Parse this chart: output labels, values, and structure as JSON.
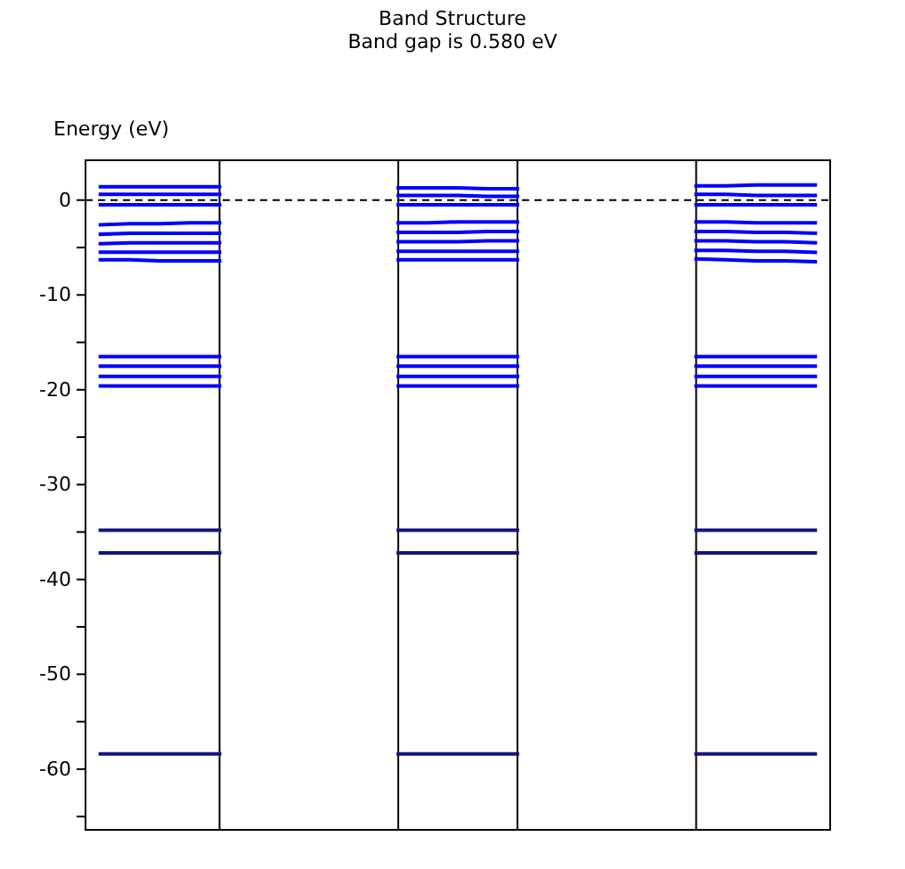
{
  "chart_data": {
    "type": "line",
    "title": "Band Structure",
    "subtitle": "Band gap is 0.580 eV",
    "ylabel": "Energy (eV)",
    "categories": [
      null,
      null,
      null,
      null,
      null,
      null,
      null,
      null,
      null,
      null,
      null,
      null,
      null,
      null,
      null,
      null,
      null,
      null,
      null,
      null,
      null,
      null,
      null,
      null,
      null
    ],
    "ylim": [
      -66.4,
      4.2
    ],
    "yticks": [
      {
        "value": 0,
        "label": "0"
      },
      {
        "value": -5,
        "label": null
      },
      {
        "value": -10,
        "label": "-10"
      },
      {
        "value": -15,
        "label": null
      },
      {
        "value": -20,
        "label": "-20"
      },
      {
        "value": -25,
        "label": null
      },
      {
        "value": -30,
        "label": "-30"
      },
      {
        "value": -35,
        "label": null
      },
      {
        "value": -40,
        "label": "-40"
      },
      {
        "value": -45,
        "label": null
      },
      {
        "value": -50,
        "label": "-50"
      },
      {
        "value": -55,
        "label": null
      },
      {
        "value": -60,
        "label": "-60"
      },
      {
        "value": -65,
        "label": null
      }
    ],
    "tick_labels": "y",
    "grid": "x",
    "marker": "none",
    "line_style": "solid",
    "ref_lines": [
      {
        "axis": "y",
        "value": 0,
        "color": "#000000",
        "line_style": "dashed"
      }
    ],
    "series": [
      {
        "color": "#0000ff",
        "values": [
          1.4,
          1.4,
          1.4,
          1.4,
          1.4,
          null,
          null,
          null,
          null,
          null,
          1.3,
          1.3,
          1.3,
          1.2,
          1.2,
          null,
          null,
          null,
          null,
          null,
          1.5,
          1.5,
          1.6,
          1.6,
          1.6
        ]
      },
      {
        "color": "#0000ff",
        "values": [
          0.6,
          0.6,
          0.6,
          0.6,
          0.6,
          null,
          null,
          null,
          null,
          null,
          0.5,
          0.5,
          0.5,
          0.4,
          0.4,
          null,
          null,
          null,
          null,
          null,
          0.6,
          0.6,
          0.5,
          0.5,
          0.5
        ]
      },
      {
        "color": "#0000ff",
        "values": [
          -0.5,
          -0.5,
          -0.5,
          -0.5,
          -0.5,
          null,
          null,
          null,
          null,
          null,
          -0.5,
          -0.5,
          -0.5,
          -0.5,
          -0.5,
          null,
          null,
          null,
          null,
          null,
          -0.5,
          -0.5,
          -0.5,
          -0.5,
          -0.5
        ]
      },
      {
        "color": "#0000ff",
        "values": [
          -2.6,
          -2.5,
          -2.5,
          -2.4,
          -2.4,
          null,
          null,
          null,
          null,
          null,
          -2.4,
          -2.4,
          -2.3,
          -2.3,
          -2.3,
          null,
          null,
          null,
          null,
          null,
          -2.3,
          -2.3,
          -2.4,
          -2.4,
          -2.4
        ]
      },
      {
        "color": "#0000ff",
        "values": [
          -3.6,
          -3.5,
          -3.5,
          -3.5,
          -3.5,
          null,
          null,
          null,
          null,
          null,
          -3.4,
          -3.4,
          -3.4,
          -3.3,
          -3.3,
          null,
          null,
          null,
          null,
          null,
          -3.3,
          -3.3,
          -3.4,
          -3.4,
          -3.5
        ]
      },
      {
        "color": "#0000ff",
        "values": [
          -4.6,
          -4.5,
          -4.5,
          -4.5,
          -4.5,
          null,
          null,
          null,
          null,
          null,
          -4.4,
          -4.4,
          -4.4,
          -4.3,
          -4.3,
          null,
          null,
          null,
          null,
          null,
          -4.3,
          -4.3,
          -4.4,
          -4.4,
          -4.5
        ]
      },
      {
        "color": "#0000ff",
        "values": [
          -5.5,
          -5.5,
          -5.5,
          -5.5,
          -5.5,
          null,
          null,
          null,
          null,
          null,
          -5.4,
          -5.4,
          -5.4,
          -5.4,
          -5.4,
          null,
          null,
          null,
          null,
          null,
          -5.3,
          -5.3,
          -5.4,
          -5.4,
          -5.5
        ]
      },
      {
        "color": "#0000ff",
        "values": [
          -6.3,
          -6.3,
          -6.4,
          -6.4,
          -6.4,
          null,
          null,
          null,
          null,
          null,
          -6.3,
          -6.3,
          -6.3,
          -6.3,
          -6.3,
          null,
          null,
          null,
          null,
          null,
          -6.2,
          -6.3,
          -6.4,
          -6.4,
          -6.5
        ]
      },
      {
        "color": "#0000ff",
        "values": [
          -16.5,
          -16.5,
          -16.5,
          -16.5,
          -16.5,
          null,
          null,
          null,
          null,
          null,
          -16.5,
          -16.5,
          -16.5,
          -16.5,
          -16.5,
          null,
          null,
          null,
          null,
          null,
          -16.5,
          -16.5,
          -16.5,
          -16.5,
          -16.5
        ]
      },
      {
        "color": "#0000ff",
        "values": [
          -17.5,
          -17.5,
          -17.5,
          -17.5,
          -17.5,
          null,
          null,
          null,
          null,
          null,
          -17.5,
          -17.5,
          -17.5,
          -17.5,
          -17.5,
          null,
          null,
          null,
          null,
          null,
          -17.5,
          -17.5,
          -17.5,
          -17.5,
          -17.5
        ]
      },
      {
        "color": "#0000ff",
        "values": [
          -18.6,
          -18.6,
          -18.6,
          -18.6,
          -18.6,
          null,
          null,
          null,
          null,
          null,
          -18.6,
          -18.6,
          -18.6,
          -18.6,
          -18.6,
          null,
          null,
          null,
          null,
          null,
          -18.6,
          -18.6,
          -18.6,
          -18.6,
          -18.6
        ]
      },
      {
        "color": "#0000ff",
        "values": [
          -19.6,
          -19.6,
          -19.6,
          -19.6,
          -19.6,
          null,
          null,
          null,
          null,
          null,
          -19.6,
          -19.6,
          -19.6,
          -19.6,
          -19.6,
          null,
          null,
          null,
          null,
          null,
          -19.6,
          -19.6,
          -19.6,
          -19.6,
          -19.6
        ]
      },
      {
        "color": "#141480",
        "values": [
          -34.8,
          -34.8,
          -34.8,
          -34.8,
          -34.8,
          null,
          null,
          null,
          null,
          null,
          -34.8,
          -34.8,
          -34.8,
          -34.8,
          -34.8,
          null,
          null,
          null,
          null,
          null,
          -34.8,
          -34.8,
          -34.8,
          -34.8,
          -34.8
        ]
      },
      {
        "color": "#141480",
        "values": [
          -37.2,
          -37.2,
          -37.2,
          -37.2,
          -37.2,
          null,
          null,
          null,
          null,
          null,
          -37.2,
          -37.2,
          -37.2,
          -37.2,
          -37.2,
          null,
          null,
          null,
          null,
          null,
          -37.2,
          -37.2,
          -37.2,
          -37.2,
          -37.2
        ]
      },
      {
        "color": "#141480",
        "values": [
          -58.4,
          -58.4,
          -58.4,
          -58.4,
          -58.4,
          null,
          null,
          null,
          null,
          null,
          -58.4,
          -58.4,
          -58.4,
          -58.4,
          -58.4,
          null,
          null,
          null,
          null,
          null,
          -58.4,
          -58.4,
          -58.4,
          -58.4,
          -58.4
        ]
      }
    ]
  }
}
